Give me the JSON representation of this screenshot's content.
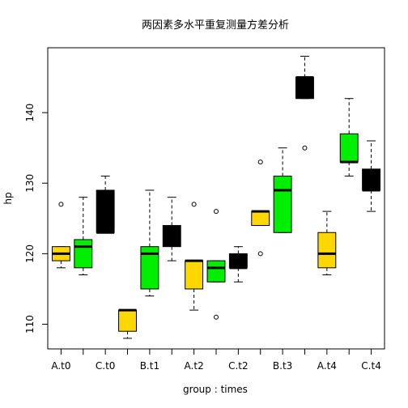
{
  "chart_data": {
    "type": "box",
    "title": "两因素多水平重复测量方差分析",
    "xlabel": "group : times",
    "ylabel": "hp",
    "ylim": [
      106.5,
      149.2
    ],
    "yticks": [
      110,
      120,
      130,
      140
    ],
    "category_labels_shown": [
      "A.t0",
      "C.t0",
      "B.t1",
      "A.t2",
      "C.t2",
      "B.t3",
      "A.t4",
      "C.t4"
    ],
    "groups": [
      "A",
      "B",
      "C"
    ],
    "colors": {
      "A": "#FFD700",
      "B": "#00EE00",
      "C": "#000000"
    },
    "boxes": [
      {
        "label": "A.t0",
        "group": "A",
        "whisker_low": 118,
        "q1": 119,
        "median": 120,
        "q3": 121,
        "whisker_high": 121,
        "outliers": [
          127
        ]
      },
      {
        "label": "B.t0",
        "group": "B",
        "whisker_low": 117,
        "q1": 118,
        "median": 121,
        "q3": 122,
        "whisker_high": 128,
        "outliers": []
      },
      {
        "label": "C.t0",
        "group": "C",
        "whisker_low": 123,
        "q1": 123,
        "median": 123,
        "q3": 129,
        "whisker_high": 131,
        "outliers": []
      },
      {
        "label": "A.t1",
        "group": "A",
        "whisker_low": 108,
        "q1": 109,
        "median": 112,
        "q3": 112,
        "whisker_high": 112,
        "outliers": []
      },
      {
        "label": "B.t1",
        "group": "B",
        "whisker_low": 114,
        "q1": 115,
        "median": 120,
        "q3": 121,
        "whisker_high": 129,
        "outliers": []
      },
      {
        "label": "C.t1",
        "group": "C",
        "whisker_low": 119,
        "q1": 121,
        "median": 122,
        "q3": 124,
        "whisker_high": 128,
        "outliers": []
      },
      {
        "label": "A.t2",
        "group": "A",
        "whisker_low": 112,
        "q1": 115,
        "median": 119,
        "q3": 119,
        "whisker_high": 119,
        "outliers": [
          127
        ]
      },
      {
        "label": "B.t2",
        "group": "B",
        "whisker_low": 116,
        "q1": 116,
        "median": 118,
        "q3": 119,
        "whisker_high": 119,
        "outliers": [
          111,
          126
        ]
      },
      {
        "label": "C.t2",
        "group": "C",
        "whisker_low": 116,
        "q1": 118,
        "median": 118,
        "q3": 120,
        "whisker_high": 121,
        "outliers": []
      },
      {
        "label": "A.t3",
        "group": "A",
        "whisker_low": 124,
        "q1": 124,
        "median": 126,
        "q3": 126,
        "whisker_high": 126,
        "outliers": [
          120,
          133
        ]
      },
      {
        "label": "B.t3",
        "group": "B",
        "whisker_low": 123,
        "q1": 123,
        "median": 129,
        "q3": 131,
        "whisker_high": 135,
        "outliers": []
      },
      {
        "label": "C.t3",
        "group": "C",
        "whisker_low": 142,
        "q1": 142,
        "median": 145,
        "q3": 145,
        "whisker_high": 148,
        "outliers": [
          135
        ]
      },
      {
        "label": "A.t4",
        "group": "A",
        "whisker_low": 117,
        "q1": 118,
        "median": 120,
        "q3": 123,
        "whisker_high": 126,
        "outliers": []
      },
      {
        "label": "B.t4",
        "group": "B",
        "whisker_low": 131,
        "q1": 133,
        "median": 133,
        "q3": 137,
        "whisker_high": 142,
        "outliers": []
      },
      {
        "label": "C.t4",
        "group": "C",
        "whisker_low": 126,
        "q1": 129,
        "median": 129,
        "q3": 132,
        "whisker_high": 136,
        "outliers": []
      }
    ]
  }
}
